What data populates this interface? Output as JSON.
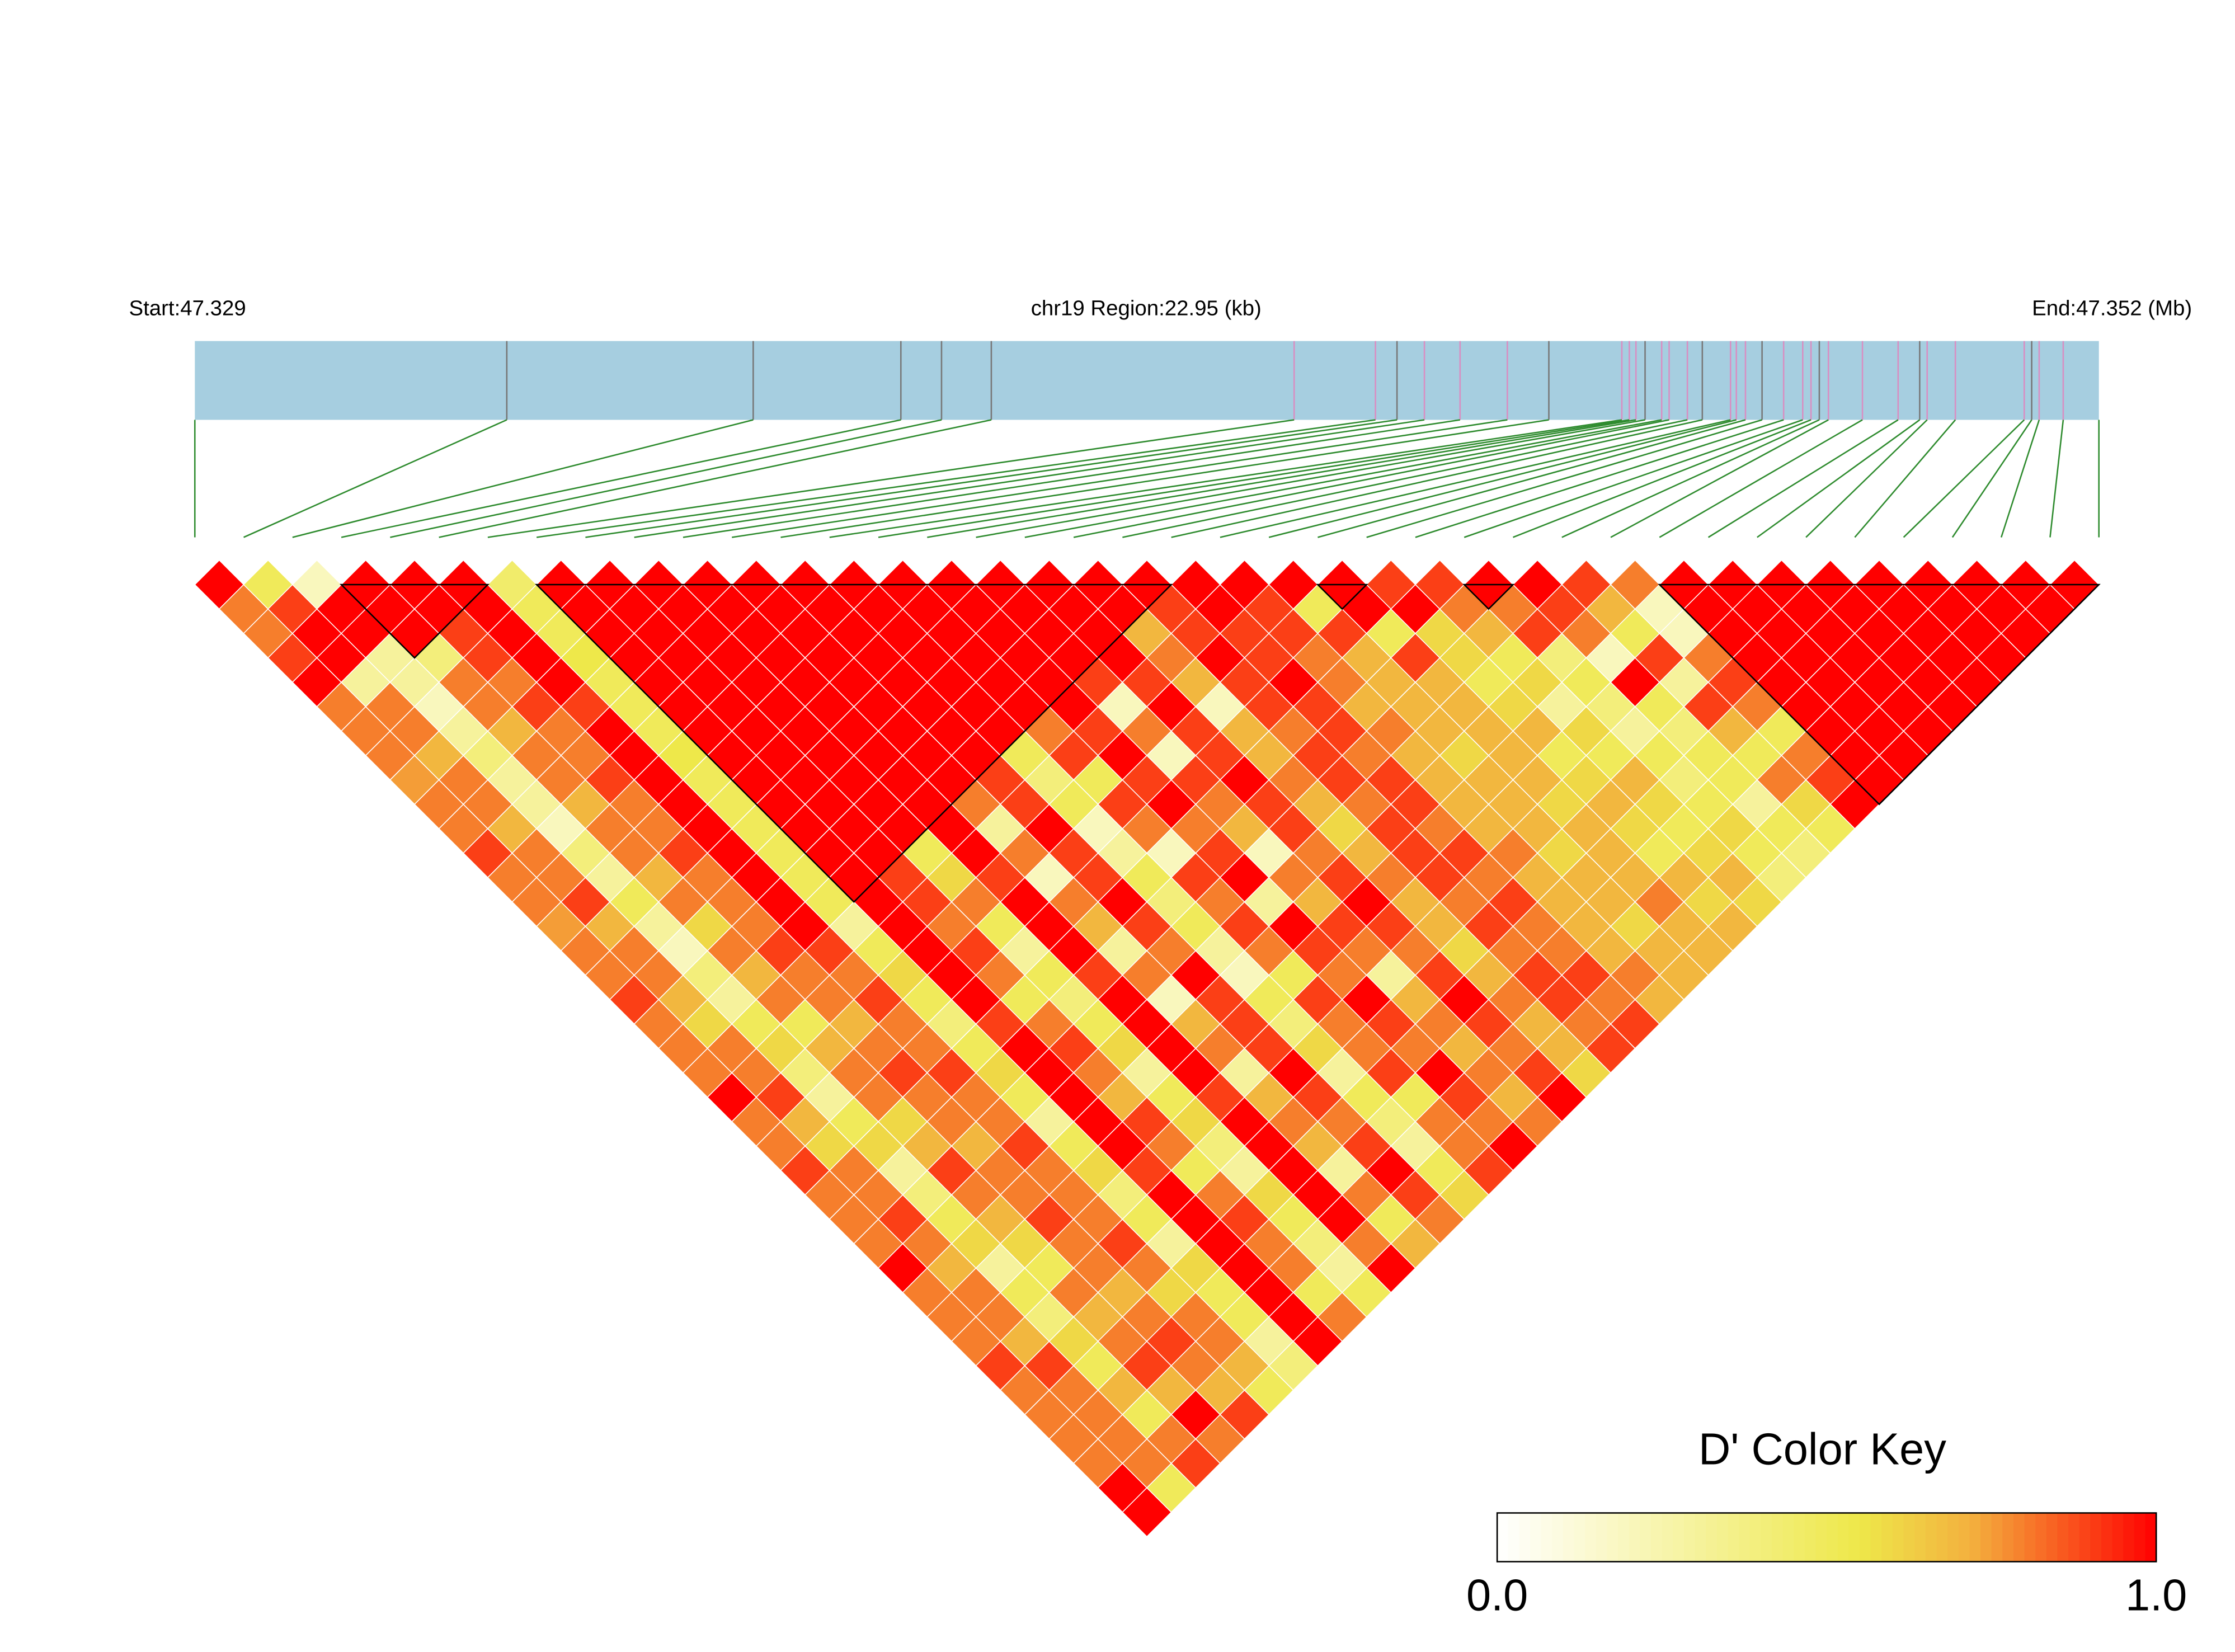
{
  "chart_data": {
    "type": "ld_heatmap",
    "start_label": "Start:47.329",
    "region_label": "chr19 Region:22.95 (kb)",
    "end_label": "End:47.352 (Mb)",
    "xlim": [
      0,
      22.95
    ],
    "positions": [
      0,
      3.76,
      6.73,
      8.51,
      9.0,
      9.6,
      13.25,
      14.23,
      14.49,
      14.82,
      15.25,
      15.82,
      16.32,
      17.2,
      17.29,
      17.37,
      17.48,
      17.68,
      17.77,
      17.99,
      18.17,
      18.51,
      18.58,
      18.69,
      18.89,
      19.15,
      19.38,
      19.48,
      19.58,
      19.69,
      20.1,
      20.53,
      20.79,
      20.88,
      21.22,
      22.05,
      22.14,
      22.23,
      22.52,
      22.95
    ],
    "blocks": [
      [
        3,
        6
      ],
      [
        7,
        20
      ],
      [
        23,
        24
      ],
      [
        26,
        27
      ],
      [
        30,
        39
      ]
    ],
    "dprime": [
      [
        1,
        0.8,
        0.8,
        0.9,
        1,
        0.8,
        0.8,
        0.8,
        0.75,
        0.8,
        0.8,
        0.9,
        0.8,
        0.8,
        0.75,
        0.8,
        0.8,
        0.9,
        0.8,
        0.8,
        0.8,
        1,
        0.8,
        0.8,
        0.9,
        0.8,
        0.8,
        0.8,
        1,
        0.8,
        0.8,
        0.8,
        0.9,
        0.8,
        0.8,
        0.8,
        0.8,
        1,
        1
      ],
      [
        0.5,
        0.9,
        1,
        1,
        0.3,
        0.8,
        0.8,
        0.7,
        0.8,
        0.8,
        0.7,
        0.8,
        0.8,
        0.9,
        0.7,
        0.8,
        0.8,
        0.7,
        0.6,
        0.8,
        0.8,
        0.9,
        0.7,
        0.6,
        0.8,
        0.8,
        0.9,
        0.8,
        0.7,
        0.8,
        0.8,
        0.7,
        0.9,
        0.8,
        0.8,
        0.8,
        0.8,
        0.5
      ],
      [
        0.2,
        1,
        1,
        0.3,
        0.3,
        0.2,
        0.3,
        0.4,
        0.3,
        0.3,
        0.2,
        0.4,
        0.3,
        0.5,
        0.3,
        0.2,
        0.4,
        0.3,
        0.5,
        0.6,
        0.4,
        0.3,
        0.5,
        0.6,
        0.3,
        0.4,
        0.5,
        0.6,
        0.3,
        0.5,
        0.4,
        0.6,
        0.5,
        0.7,
        0.5,
        0.8,
        0.9
      ],
      [
        1,
        1,
        1,
        0.4,
        0.8,
        0.8,
        0.7,
        0.8,
        0.8,
        0.7,
        0.8,
        0.8,
        0.7,
        0.8,
        0.6,
        0.8,
        0.7,
        0.8,
        0.5,
        0.7,
        0.8,
        0.8,
        0.6,
        0.7,
        0.9,
        0.8,
        0.7,
        0.6,
        0.5,
        0.8,
        0.7,
        0.8,
        0.9,
        0.7,
        1,
        0.8
      ],
      [
        1,
        1,
        0.9,
        0.9,
        0.8,
        0.9,
        0.8,
        0.8,
        0.9,
        0.8,
        0.8,
        0.9,
        0.8,
        0.8,
        0.8,
        0.9,
        0.8,
        0.8,
        0.7,
        0.8,
        0.9,
        0.8,
        0.8,
        0.7,
        0.8,
        0.8,
        0.9,
        0.8,
        0.8,
        0.7,
        0.8,
        0.9,
        0.8,
        0.7,
        0.9
      ],
      [
        1,
        1,
        1,
        1,
        1,
        0.9,
        1,
        1,
        1,
        1,
        1,
        1,
        1,
        1,
        1,
        0.9,
        0.8,
        0.9,
        0.8,
        0.8,
        0.9,
        0.8,
        0.8,
        0.9,
        0.8,
        0.8,
        0.8,
        0.9,
        0.8,
        0.6,
        0.8,
        0.8,
        0.7,
        0.5
      ],
      [
        0.45,
        0.5,
        0.5,
        0.55,
        0.5,
        0.5,
        0.5,
        0.55,
        0.5,
        0.5,
        0.5,
        0.5,
        0.5,
        0.5,
        0.3,
        0.5,
        0.6,
        0.5,
        0.4,
        0.5,
        0.6,
        0.5,
        0.3,
        0.5,
        0.6,
        0.4,
        0.5,
        0.3,
        0.6,
        0.5,
        0.5,
        0.3,
        0.4
      ],
      [
        1,
        1,
        1,
        1,
        1,
        1,
        1,
        1,
        1,
        1,
        1,
        1,
        1,
        1,
        1,
        1,
        1,
        1,
        0.9,
        1,
        1,
        1,
        1,
        1,
        0.9,
        1,
        1,
        1,
        1,
        1,
        1,
        1
      ],
      [
        1,
        1,
        1,
        1,
        1,
        1,
        1,
        1,
        1,
        1,
        1,
        1,
        0.9,
        0.9,
        0.8,
        0.9,
        0.8,
        0.5,
        0.8,
        0.9,
        0.8,
        0.7,
        0.9,
        0.8,
        0.5,
        0.8,
        0.9,
        0.8,
        0.8,
        0.5,
        0.8
      ],
      [
        1,
        1,
        1,
        1,
        1,
        1,
        1,
        1,
        1,
        1,
        1,
        0.5,
        0.6,
        0.8,
        0.5,
        0.3,
        0.5,
        0.4,
        0.5,
        0.6,
        0.3,
        0.5,
        0.6,
        0.4,
        0.3,
        0.6,
        0.5,
        0.4,
        0.3,
        0.5
      ],
      [
        1,
        1,
        1,
        1,
        1,
        1,
        1,
        1,
        1,
        1,
        1,
        1,
        0.9,
        1,
        1,
        1,
        0.9,
        1,
        1,
        1,
        1,
        0.9,
        1,
        1,
        1,
        1,
        1,
        0.8,
        1
      ],
      [
        1,
        1,
        1,
        1,
        1,
        1,
        1,
        1,
        1,
        0.8,
        0.3,
        0.8,
        0.2,
        0.8,
        0.7,
        0.3,
        0.8,
        0.2,
        0.7,
        0.8,
        0.3,
        0.7,
        0.8,
        0.7,
        0.3,
        0.8,
        0.5,
        0.7
      ],
      [
        1,
        1,
        1,
        1,
        1,
        1,
        1,
        1,
        0.9,
        0.9,
        1,
        0.9,
        0.9,
        1,
        0.9,
        0.8,
        1,
        0.9,
        0.9,
        0.9,
        1,
        0.9,
        0.8,
        0.9,
        1,
        0.9,
        0.8
      ],
      [
        1,
        1,
        1,
        1,
        1,
        1,
        1,
        0.5,
        0.4,
        0.5,
        0.2,
        0.3,
        0.5,
        0.4,
        0.5,
        0.3,
        0.2,
        0.5,
        0.4,
        0.6,
        0.3,
        0.5,
        0.4,
        0.3,
        0.5,
        0.6
      ],
      [
        1,
        1,
        1,
        1,
        1,
        1,
        0.8,
        0.9,
        0.5,
        0.9,
        0.8,
        0.2,
        0.9,
        0.8,
        0.9,
        0.8,
        0.5,
        0.9,
        0.8,
        0.8,
        0.9,
        0.5,
        0.8,
        0.8,
        0.9
      ],
      [
        1,
        1,
        1,
        1,
        1,
        1,
        0.9,
        1,
        0.9,
        1,
        0.8,
        0.9,
        1,
        0.3,
        1,
        0.9,
        0.8,
        1,
        0.9,
        0.8,
        1,
        0.9,
        0.8,
        1
      ],
      [
        1,
        1,
        1,
        1,
        0.9,
        0.2,
        0.8,
        0.2,
        0.9,
        0.8,
        0.7,
        0.2,
        0.8,
        0.7,
        0.9,
        0.8,
        0.3,
        0.7,
        0.8,
        0.7,
        0.8,
        0.7,
        0.8
      ],
      [
        1,
        1,
        1,
        1,
        0.9,
        1,
        0.9,
        0.9,
        1,
        0.9,
        0.9,
        0.8,
        0.9,
        1,
        0.9,
        0.8,
        0.9,
        1,
        0.9,
        0.8,
        0.9,
        1
      ],
      [
        1,
        1,
        0.7,
        0.8,
        0.7,
        0.2,
        0.7,
        0.7,
        0.8,
        0.7,
        0.6,
        0.7,
        0.8,
        0.7,
        0.7,
        0.6,
        0.7,
        0.8,
        0.7,
        0.7,
        0.6
      ],
      [
        1,
        0.9,
        0.9,
        1,
        0.9,
        0.9,
        0.8,
        0.9,
        0.9,
        0.8,
        0.9,
        0.9,
        0.9,
        0.8,
        0.9,
        0.8,
        0.9,
        0.9,
        0.8,
        0.9
      ],
      [
        1,
        1,
        0.9,
        0.9,
        1,
        0.9,
        0.9,
        0.8,
        0.9,
        0.9,
        0.8,
        0.9,
        0.8,
        0.9,
        0.8,
        0.8,
        0.9,
        0.8,
        0.9
      ],
      [
        1,
        0.9,
        0.9,
        0.8,
        0.8,
        0.7,
        0.8,
        0.7,
        0.7,
        0.7,
        0.7,
        0.8,
        0.7,
        0.7,
        0.7,
        0.7,
        0.8,
        0.7
      ],
      [
        1,
        0.5,
        0.9,
        0.7,
        0.7,
        0.7,
        0.7,
        0.6,
        0.7,
        0.7,
        0.7,
        0.6,
        0.7,
        0.7,
        0.6,
        0.7,
        0.7
      ],
      [
        1,
        1,
        0.5,
        0.9,
        0.7,
        0.7,
        0.7,
        0.7,
        0.7,
        0.6,
        0.7,
        0.7,
        0.7,
        0.8,
        0.7,
        0.7
      ],
      [
        0.9,
        1,
        0.6,
        0.6,
        0.5,
        0.6,
        0.7,
        0.5,
        0.6,
        0.7,
        0.6,
        0.5,
        0.7,
        0.6,
        0.7
      ],
      [
        0.9,
        0.8,
        0.7,
        0.5,
        0.6,
        0.3,
        0.6,
        0.5,
        0.7,
        0.6,
        0.5,
        0.6,
        0.7,
        0.6
      ],
      [
        1,
        0.8,
        0.9,
        0.4,
        0.5,
        0.4,
        0.3,
        0.5,
        0.4,
        0.5,
        0.6,
        0.5,
        0.4
      ],
      [
        1,
        0.9,
        0.8,
        0.2,
        1,
        0.5,
        0.4,
        0.5,
        0.5,
        0.3,
        0.5,
        0.4
      ],
      [
        0.9,
        0.7,
        0.5,
        0.9,
        0.3,
        0.9,
        0.7,
        0.5,
        0.8,
        0.6,
        0.5
      ],
      [
        0.8,
        0.2,
        0.2,
        0.8,
        0.9,
        0.8,
        0.5,
        0.8,
        0.9,
        1
      ],
      [
        1,
        1,
        1,
        1,
        1,
        1,
        1,
        1,
        1
      ],
      [
        1,
        1,
        1,
        1,
        1,
        1,
        1,
        1
      ],
      [
        1,
        1,
        1,
        1,
        1,
        1,
        1
      ],
      [
        1,
        1,
        1,
        1,
        1,
        1
      ],
      [
        1,
        1,
        1,
        1,
        1
      ],
      [
        1,
        1,
        1,
        1
      ],
      [
        1,
        1,
        1
      ],
      [
        1,
        1
      ],
      [
        1
      ]
    ],
    "legend_title": "D' Color Key",
    "legend_ticks": [
      {
        "value": 0,
        "label": "0.0"
      },
      {
        "value": 1,
        "label": "1.0"
      }
    ]
  }
}
